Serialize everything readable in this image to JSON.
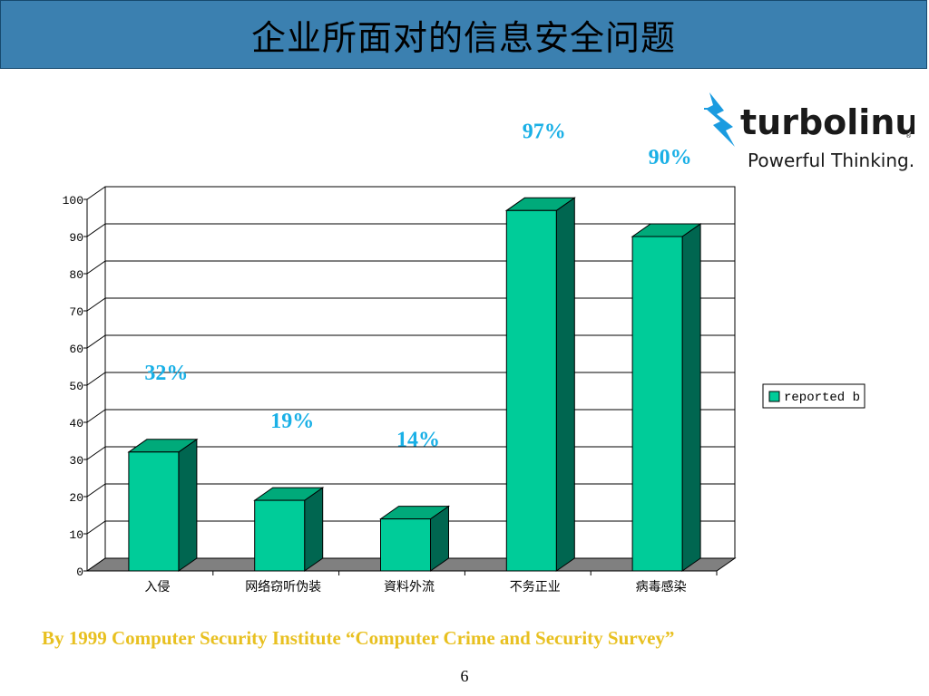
{
  "slide": {
    "title": "企业所面对的信息安全问题",
    "footer_note": "By 1999 Computer Security Institute “Computer Crime and Security Survey”",
    "page_number": "6"
  },
  "logo": {
    "name": "turbolinux",
    "tagline": "Powerful Thinking."
  },
  "chart_data": {
    "type": "bar",
    "categories": [
      "入侵",
      "网络窃听伪装",
      "資料外流",
      "不务正业",
      "病毒感染"
    ],
    "series": [
      {
        "name": "reported b",
        "values": [
          32,
          19,
          14,
          97,
          90
        ]
      }
    ],
    "data_labels": [
      "32%",
      "19%",
      "14%",
      "97%",
      "90%"
    ],
    "ylim": [
      0,
      100
    ],
    "yticks": [
      0,
      10,
      20,
      30,
      40,
      50,
      60,
      70,
      80,
      90,
      100
    ],
    "grid": true,
    "legend_position": "right",
    "colors": {
      "bar_front": "#00cc99",
      "bar_top": "#00aa7a",
      "bar_side": "#006650",
      "floor": "#808080",
      "label": "#1ab0e6"
    }
  }
}
